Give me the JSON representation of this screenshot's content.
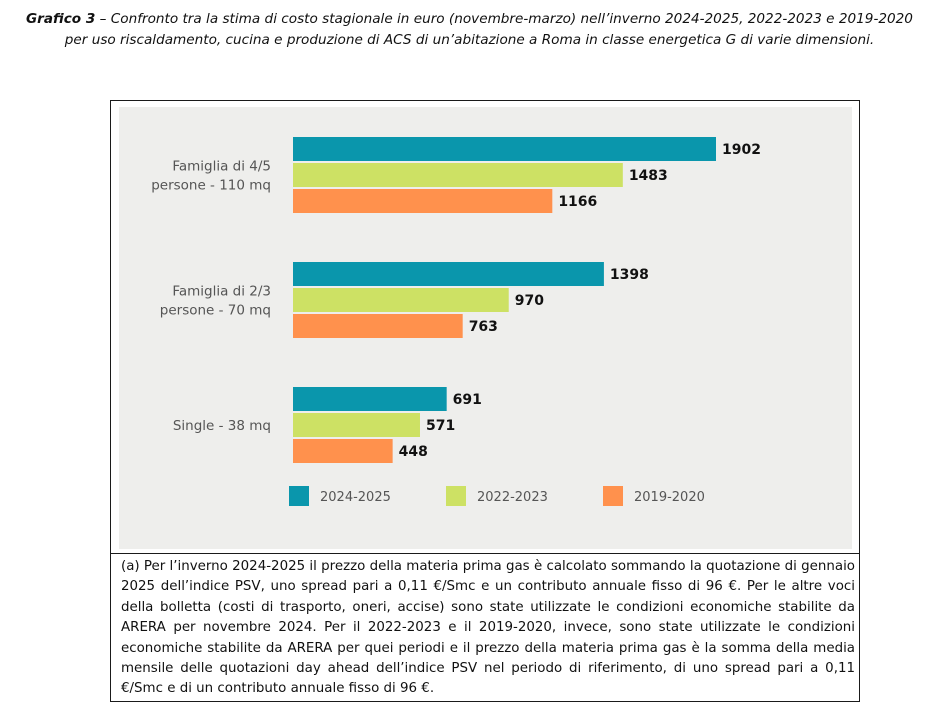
{
  "caption": {
    "lead": "Grafico 3",
    "text": " – Confronto tra la stima di costo stagionale in euro (novembre-marzo) nell’inverno 2024-2025, 2022-2023 e 2019-2020 per uso riscaldamento, cucina e produzione di ACS di un’abitazione a Roma in classe energetica G di varie dimensioni."
  },
  "note": "(a) Per l’inverno 2024-2025 il prezzo della materia prima gas è calcolato sommando la quotazione di gennaio 2025 dell’indice PSV, uno spread pari a 0,11 €/Smc e un contributo annuale fisso di 96 €. Per le altre voci della bolletta (costi di trasporto, oneri, accise) sono state utilizzate le condizioni economiche stabilite da ARERA per novembre 2024. Per il 2022-2023 e il 2019-2020, invece, sono state utilizzate le condizioni economiche stabilite da ARERA per quei periodi e il prezzo della materia prima gas è la somma della media mensile delle quotazioni day ahead dell’indice PSV nel periodo di riferimento, di uno spread pari a 0,11 €/Smc e di un contributo annuale fisso di 96 €.",
  "chart_data": {
    "type": "bar",
    "orientation": "horizontal",
    "categories": [
      [
        "Famiglia di 4/5",
        "persone - 110 mq"
      ],
      [
        "Famiglia di 2/3",
        "persone - 70 mq"
      ],
      [
        "Single - 38 mq"
      ]
    ],
    "series": [
      {
        "name": "2024-2025",
        "color": "#0a96ac",
        "values": [
          1902,
          1398,
          691
        ]
      },
      {
        "name": "2022-2023",
        "color": "#cde164",
        "values": [
          1483,
          970,
          571
        ]
      },
      {
        "name": "2019-2020",
        "color": "#ff914d",
        "values": [
          1166,
          763,
          448
        ]
      }
    ],
    "title": "",
    "xlabel": "",
    "ylabel": "",
    "xlim": [
      0,
      1902
    ],
    "grid": false,
    "axis_ticks": false,
    "data_labels": true,
    "legend": "bottom"
  }
}
